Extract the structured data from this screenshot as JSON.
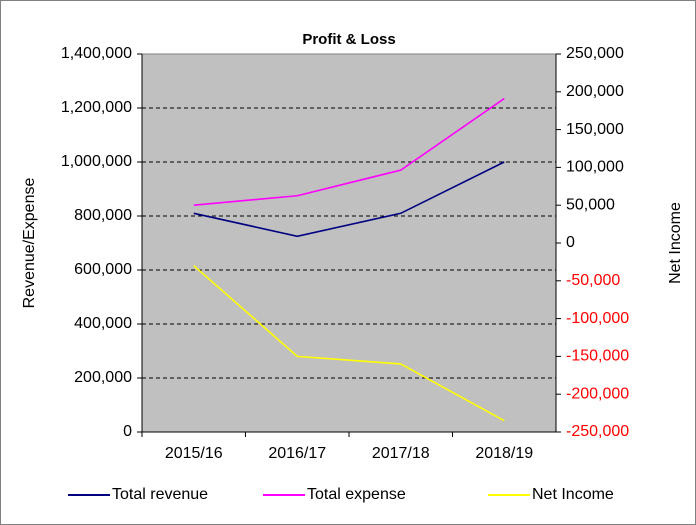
{
  "chart_data": {
    "type": "line",
    "title": "Profit & Loss",
    "y_label": "Revenue/Expense",
    "y2_label": "Net Income",
    "categories": [
      "2015/16",
      "2016/17",
      "2017/18",
      "2018/19"
    ],
    "series": [
      {
        "name": "Total revenue",
        "color": "#000080",
        "values": [
          810000,
          725000,
          810000,
          1000000
        ]
      },
      {
        "name": "Total expense",
        "color": "#ff00ff",
        "values": [
          840000,
          875000,
          970000,
          1235000
        ]
      },
      {
        "name": "Net Income",
        "color": "#ffff00",
        "axis": "y2",
        "values": [
          -30000,
          -150000,
          -160000,
          -235000
        ]
      }
    ],
    "ylim": [
      0,
      1400000
    ],
    "yticks": [
      0,
      {
        "value": 200000,
        "label": "200,000"
      },
      {
        "value": 400000,
        "label": "400,000"
      },
      {
        "value": 600000,
        "label": "600,000"
      },
      {
        "value": 800000,
        "label": "800,000"
      },
      {
        "value": 1000000,
        "label": "1,000,000"
      },
      {
        "value": 1200000,
        "label": "1,200,000"
      },
      {
        "value": 1400000,
        "label": "1,400,000"
      }
    ],
    "y2lim": [
      -250000,
      250000
    ],
    "y2ticks": [
      {
        "value": -250000,
        "label": "-250,000"
      },
      {
        "value": -200000,
        "label": "-200,000"
      },
      {
        "value": -150000,
        "label": "-150,000"
      },
      {
        "value": -100000,
        "label": "-100,000"
      },
      {
        "value": -50000,
        "label": "-50,000"
      },
      0,
      {
        "value": 50000,
        "label": "50,000"
      },
      {
        "value": 100000,
        "label": "100,000"
      },
      {
        "value": 150000,
        "label": "150,000"
      },
      {
        "value": 200000,
        "label": "200,000"
      },
      {
        "value": 250000,
        "label": "250,000"
      }
    ],
    "y2_negative_color": "#ff0000",
    "plot_background": "#c0c0c0",
    "grid": true,
    "legend": "bottom"
  }
}
